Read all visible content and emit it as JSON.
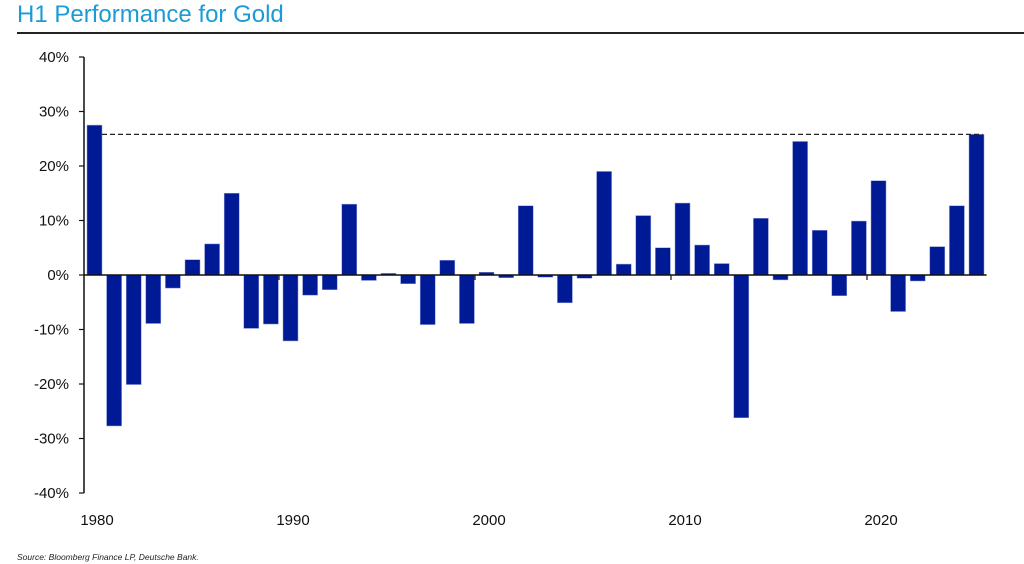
{
  "chart_data": {
    "type": "bar",
    "title": "H1 Performance for Gold",
    "xlabel": "",
    "ylabel": "",
    "ylim": [
      -40,
      40
    ],
    "y_ticks": [
      40,
      30,
      20,
      10,
      0,
      -10,
      -20,
      -30,
      -40
    ],
    "y_tick_labels": [
      "40%",
      "30%",
      "20%",
      "10%",
      "0%",
      "-10%",
      "-20%",
      "-30%",
      "-40%"
    ],
    "x_tick_labels": [
      "1980",
      "1990",
      "2000",
      "2010",
      "2020"
    ],
    "x_tick_years": [
      1980,
      1990,
      2000,
      2010,
      2020
    ],
    "categories": [
      1980,
      1981,
      1982,
      1983,
      1984,
      1985,
      1986,
      1987,
      1988,
      1989,
      1990,
      1991,
      1992,
      1993,
      1994,
      1995,
      1996,
      1997,
      1998,
      1999,
      2000,
      2001,
      2002,
      2003,
      2004,
      2005,
      2006,
      2007,
      2008,
      2009,
      2010,
      2011,
      2012,
      2013,
      2014,
      2015,
      2016,
      2017,
      2018,
      2019,
      2020,
      2021,
      2022,
      2023,
      2024,
      2025
    ],
    "values": [
      27.5,
      -27.7,
      -20.1,
      -8.9,
      -2.4,
      2.8,
      5.7,
      15.0,
      -9.8,
      -9.0,
      -12.1,
      -3.7,
      -2.7,
      13.0,
      -1.0,
      0.3,
      -1.6,
      -9.1,
      2.7,
      -8.9,
      0.5,
      -0.5,
      12.7,
      -0.4,
      -5.1,
      -0.6,
      19.0,
      2.0,
      10.9,
      5.0,
      13.2,
      5.5,
      2.1,
      -26.2,
      10.4,
      -0.9,
      24.5,
      8.2,
      -3.8,
      9.9,
      17.3,
      -6.7,
      -1.1,
      5.2,
      12.7,
      25.8
    ],
    "reference_line": {
      "value": 25.8,
      "style": "dashed"
    },
    "grid": false,
    "bar_color": "#001a96",
    "title_color": "#1a9bd7"
  },
  "source": "Source: Bloomberg Finance LP, Deutsche Bank."
}
